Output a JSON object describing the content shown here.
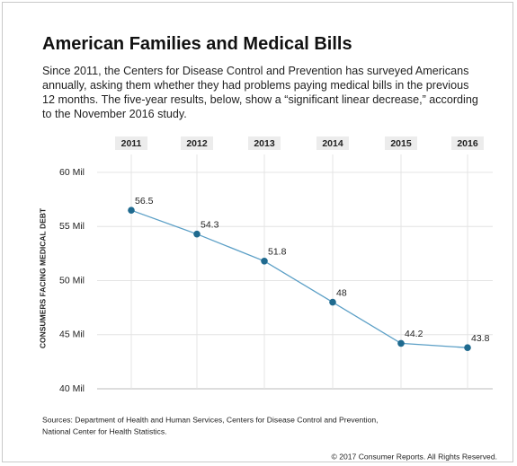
{
  "chart_data": {
    "type": "line",
    "title": "American Families and Medical Bills",
    "subtitle": [
      "Since 2011, the Centers for Disease Control and Prevention has surveyed Americans",
      "annually, asking them whether they had problems paying medical bills in the previous",
      "12 months. The five-year results, below, show a “significant linear decrease,” according",
      "to the November 2016 study."
    ],
    "y_label": "CONSUMERS FACING MEDICAL DEBT",
    "categories": [
      "2011",
      "2012",
      "2013",
      "2014",
      "2015",
      "2016"
    ],
    "values": [
      56.5,
      54.3,
      51.8,
      48,
      44.2,
      43.8
    ],
    "line_color": "#5b9fc6",
    "marker_color": "#1f6a8f",
    "ylim": [
      40,
      60
    ],
    "yticks": [
      {
        "value": 40,
        "label": "40 Mil"
      },
      {
        "value": 45,
        "label": "45 Mil"
      },
      {
        "value": 50,
        "label": "50 Mil"
      },
      {
        "value": 55,
        "label": "55 Mil"
      },
      {
        "value": 60,
        "label": "60 Mil"
      }
    ],
    "grid": true,
    "sources": [
      "Sources:  Department of Health and Human Services, Centers for Disease Control and Prevention,",
      "National Center for Health Statistics."
    ],
    "copyright": "© 2017 Consumer Reports. All Rights Reserved."
  }
}
